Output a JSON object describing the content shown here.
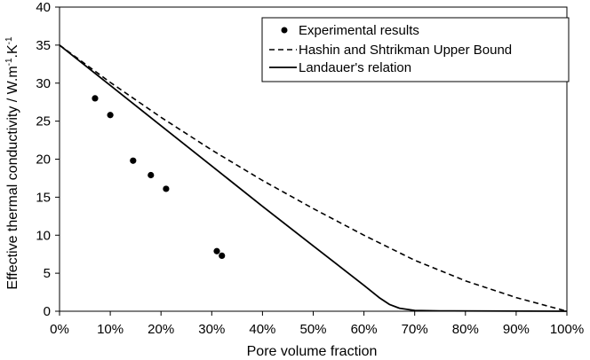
{
  "chart_data": {
    "type": "scatter",
    "xlabel": "Pore volume fraction",
    "ylabel_parts": {
      "before": "Effective thermal conductivity / W.m",
      "sup1": "-1",
      "middle": ".K",
      "sup2": "-1"
    },
    "xlim": [
      0,
      100
    ],
    "ylim": [
      0,
      40
    ],
    "x_ticks": [
      0,
      10,
      20,
      30,
      40,
      50,
      60,
      70,
      80,
      90,
      100
    ],
    "x_tick_labels": [
      "0%",
      "10%",
      "20%",
      "30%",
      "40%",
      "50%",
      "60%",
      "70%",
      "80%",
      "90%",
      "100%"
    ],
    "y_ticks": [
      0,
      5,
      10,
      15,
      20,
      25,
      30,
      35,
      40
    ],
    "y_tick_labels": [
      "0",
      "5",
      "10",
      "15",
      "20",
      "25",
      "30",
      "35",
      "40"
    ],
    "grid": false,
    "legend_position": "top-right",
    "series": [
      {
        "name": "Experimental results",
        "style": "markers",
        "points": [
          [
            7,
            28
          ],
          [
            10,
            25.8
          ],
          [
            14.5,
            19.8
          ],
          [
            18,
            17.9
          ],
          [
            21,
            16.1
          ],
          [
            31,
            7.9
          ],
          [
            32,
            7.3
          ]
        ]
      },
      {
        "name": "Hashin and Shtrikman Upper Bound",
        "style": "dashed",
        "points": [
          [
            0,
            35
          ],
          [
            10,
            30.1
          ],
          [
            20,
            25.5
          ],
          [
            30,
            21.2
          ],
          [
            40,
            17.2
          ],
          [
            50,
            13.5
          ],
          [
            60,
            10.0
          ],
          [
            70,
            6.7
          ],
          [
            80,
            4.0
          ],
          [
            90,
            1.8
          ],
          [
            100,
            0
          ]
        ]
      },
      {
        "name": "Landauer's relation",
        "style": "solid",
        "points": [
          [
            0,
            35
          ],
          [
            10,
            29.7
          ],
          [
            20,
            24.4
          ],
          [
            30,
            19.1
          ],
          [
            40,
            13.8
          ],
          [
            50,
            8.6
          ],
          [
            60,
            3.4
          ],
          [
            63,
            1.8
          ],
          [
            65,
            0.9
          ],
          [
            67,
            0.4
          ],
          [
            70,
            0.1
          ],
          [
            75,
            0.05
          ],
          [
            100,
            0
          ]
        ]
      }
    ]
  }
}
